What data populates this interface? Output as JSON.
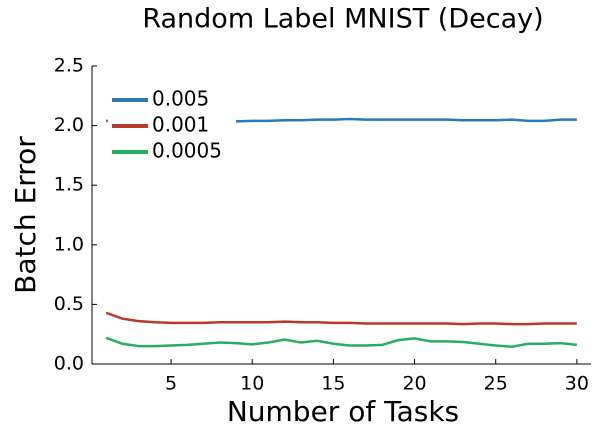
{
  "chart_data": {
    "type": "line",
    "title": "Random Label MNIST (Decay)",
    "xlabel": "Number of Tasks",
    "ylabel": "Batch Error",
    "x": [
      1,
      2,
      3,
      4,
      5,
      6,
      7,
      8,
      9,
      10,
      11,
      12,
      13,
      14,
      15,
      16,
      17,
      18,
      19,
      20,
      21,
      22,
      23,
      24,
      25,
      26,
      27,
      28,
      29,
      30
    ],
    "series": [
      {
        "name": "0.005",
        "color": "#2a7ab9",
        "values": [
          2.04,
          2.04,
          2.04,
          2.04,
          2.035,
          2.035,
          2.035,
          2.035,
          2.035,
          2.04,
          2.04,
          2.045,
          2.045,
          2.05,
          2.05,
          2.055,
          2.05,
          2.05,
          2.05,
          2.05,
          2.05,
          2.05,
          2.045,
          2.045,
          2.045,
          2.05,
          2.04,
          2.04,
          2.05,
          2.05
        ]
      },
      {
        "name": "0.001",
        "color": "#b83a2a",
        "values": [
          0.43,
          0.38,
          0.36,
          0.35,
          0.345,
          0.345,
          0.345,
          0.35,
          0.35,
          0.35,
          0.35,
          0.355,
          0.35,
          0.35,
          0.345,
          0.345,
          0.34,
          0.34,
          0.34,
          0.34,
          0.34,
          0.34,
          0.335,
          0.34,
          0.34,
          0.335,
          0.335,
          0.34,
          0.34,
          0.34
        ]
      },
      {
        "name": "0.0005",
        "color": "#27ae60",
        "values": [
          0.22,
          0.17,
          0.15,
          0.15,
          0.155,
          0.16,
          0.17,
          0.18,
          0.175,
          0.165,
          0.18,
          0.205,
          0.18,
          0.195,
          0.17,
          0.155,
          0.155,
          0.16,
          0.2,
          0.215,
          0.19,
          0.19,
          0.185,
          0.17,
          0.155,
          0.145,
          0.17,
          0.17,
          0.175,
          0.16
        ]
      }
    ],
    "xlim": [
      0.13,
      30.87
    ],
    "xticks": [
      5,
      10,
      15,
      20,
      25,
      30
    ],
    "ylim": [
      0,
      2.5
    ],
    "yticks": [
      {
        "value": 0,
        "label": "0.0"
      },
      {
        "value": 0.5,
        "label": "0.5"
      },
      {
        "value": 1,
        "label": "1.0"
      },
      {
        "value": 1.5,
        "label": "1.5"
      },
      {
        "value": 2,
        "label": "2.0"
      },
      {
        "value": 2.5,
        "label": "2.5"
      }
    ],
    "legend": "top-left",
    "grid": false
  }
}
